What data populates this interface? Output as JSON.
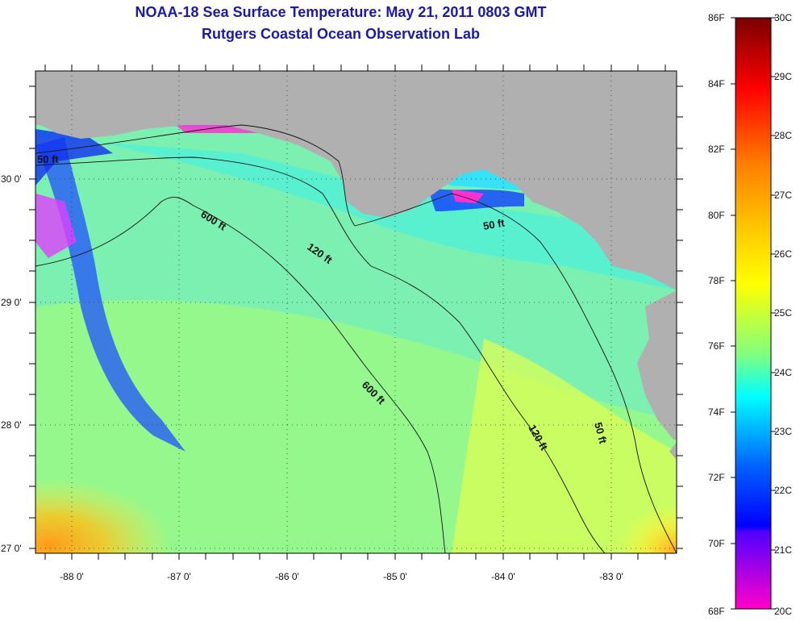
{
  "title": {
    "line1": "NOAA-18 Sea Surface Temperature:  May 21, 2011 0803 GMT",
    "line2": "Rutgers Coastal Ocean Observation Lab"
  },
  "map": {
    "lon_range": [
      -88.35,
      -82.4
    ],
    "lat_range": [
      26.97,
      30.85
    ],
    "lon_ticks": [
      "-88 0'",
      "-87 0'",
      "-86 0'",
      "-85 0'",
      "-84 0'",
      "-83 0'"
    ],
    "lat_ticks": [
      "27 0'",
      "28 0'",
      "29 0'",
      "30 0'"
    ],
    "grid": true,
    "land_color": "#b0b0b0",
    "contour_labels": [
      "50 ft",
      "600 ft",
      "120 ft",
      "50 ft",
      "600 ft",
      "120 ft",
      "50 ft"
    ]
  },
  "colorbar": {
    "fahrenheit": [
      "86F",
      "84F",
      "82F",
      "80F",
      "78F",
      "76F",
      "74F",
      "72F",
      "70F",
      "68F"
    ],
    "celsius": [
      "30C",
      "29C",
      "28C",
      "27C",
      "26C",
      "25C",
      "24C",
      "23C",
      "22C",
      "21C",
      "20C"
    ],
    "colors": [
      "#8b0000",
      "#ff0000",
      "#ff7f00",
      "#ffff00",
      "#00ffff",
      "#0000ff",
      "#7f00ff",
      "#ff00ff"
    ]
  }
}
